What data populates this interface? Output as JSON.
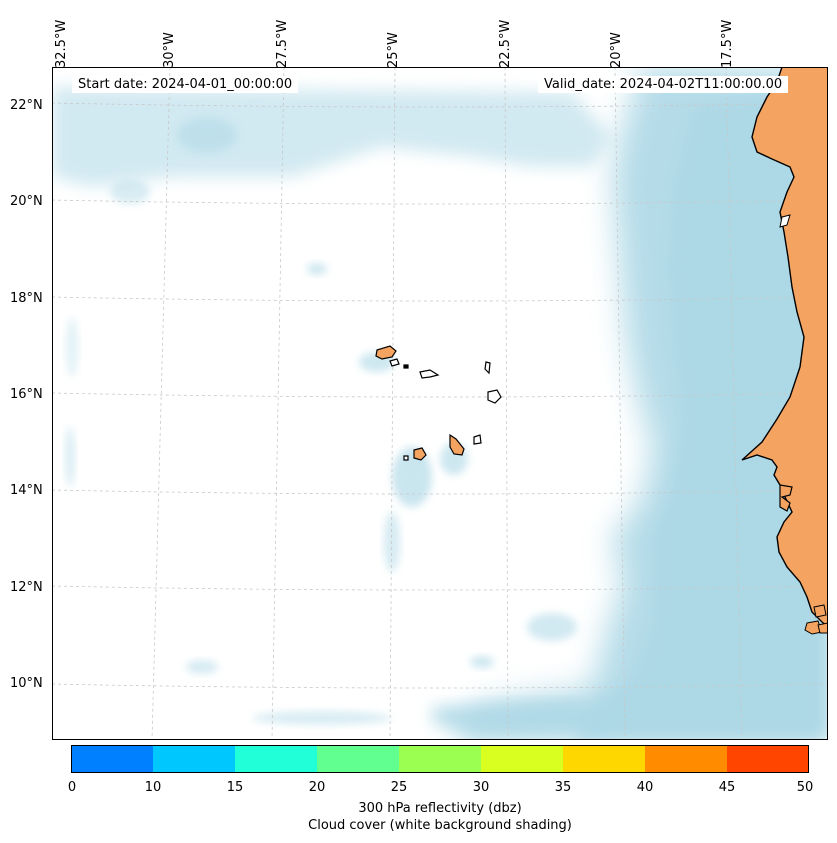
{
  "map": {
    "start_date": "Start date: 2024-04-01_00:00:00",
    "valid_date": "Valid_date: 2024-04-02T11:00:00.00",
    "lon_labels": [
      "32.5°W",
      "30°W",
      "27.5°W",
      "25°W",
      "22.5°W",
      "20°W",
      "17.5°W"
    ],
    "lat_labels": [
      "22°N",
      "20°N",
      "18°N",
      "16°N",
      "14°N",
      "12°N",
      "10°N"
    ],
    "land_color": "#f4a460",
    "cloud_color": "#add8e6",
    "gridlines": "dashed light gray",
    "features": [
      "Cabo Verde islands",
      "West African coastline"
    ]
  },
  "colorbar": {
    "ticks": [
      "0",
      "10",
      "15",
      "20",
      "25",
      "30",
      "35",
      "40",
      "45",
      "50"
    ],
    "colors": [
      "#0080ff",
      "#00c8ff",
      "#20ffd8",
      "#60ff90",
      "#9aff50",
      "#d8ff20",
      "#ffd700",
      "#ff8c00",
      "#ff4500"
    ],
    "label_line1": "300 hPa reflectivity (dbz)",
    "label_line2": "Cloud cover (white background shading)"
  }
}
